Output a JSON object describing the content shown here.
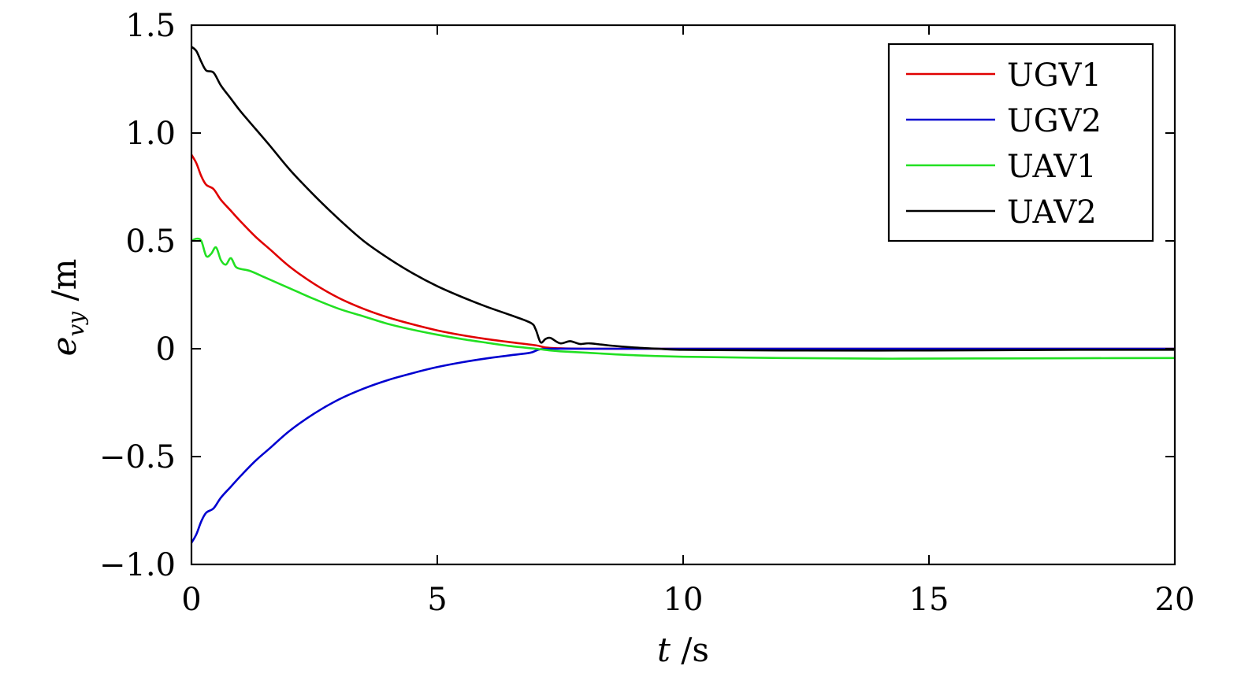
{
  "chart_data": {
    "type": "line",
    "xlabel": {
      "var": "t",
      "unit": " /s"
    },
    "ylabel": {
      "var": "e",
      "sub": "vy",
      "unit": " /m"
    },
    "xlim": [
      0,
      20
    ],
    "ylim": [
      -1.0,
      1.5
    ],
    "x_ticks": [
      0,
      5,
      10,
      15,
      20
    ],
    "x_tick_labels": [
      "0",
      "5",
      "10",
      "15",
      "20"
    ],
    "y_ticks": [
      -1.0,
      -0.5,
      0,
      0.5,
      1.0,
      1.5
    ],
    "y_tick_labels": [
      "−1.0",
      "−0.5",
      "0",
      "0.5",
      "1.0",
      "1.5"
    ],
    "grid": false,
    "legend_position": "top-right",
    "series": [
      {
        "name": "UGV1",
        "color": "#e00000",
        "x": [
          0,
          0.1,
          0.2,
          0.3,
          0.45,
          0.6,
          0.8,
          1.0,
          1.3,
          1.6,
          2.0,
          2.5,
          3.0,
          3.5,
          4.0,
          4.5,
          5.0,
          5.5,
          6.0,
          6.5,
          7.0,
          7.2,
          7.5,
          8.0,
          9.0,
          10.0,
          12.0,
          15.0,
          18.0,
          20.0
        ],
        "y": [
          0.9,
          0.86,
          0.8,
          0.76,
          0.74,
          0.69,
          0.64,
          0.59,
          0.52,
          0.46,
          0.38,
          0.3,
          0.235,
          0.185,
          0.145,
          0.113,
          0.085,
          0.063,
          0.045,
          0.03,
          0.016,
          0.006,
          0.002,
          0.0,
          0.0,
          0.0,
          0.0,
          0.0,
          0.0,
          0.0
        ]
      },
      {
        "name": "UGV2",
        "color": "#0000d0",
        "x": [
          0,
          0.1,
          0.2,
          0.3,
          0.45,
          0.6,
          0.8,
          1.0,
          1.3,
          1.6,
          2.0,
          2.5,
          3.0,
          3.5,
          4.0,
          4.5,
          5.0,
          5.5,
          6.0,
          6.5,
          6.9,
          7.1,
          7.5,
          8.0,
          9.0,
          10.0,
          12.0,
          15.0,
          18.0,
          20.0
        ],
        "y": [
          -0.9,
          -0.86,
          -0.8,
          -0.76,
          -0.74,
          -0.69,
          -0.64,
          -0.59,
          -0.52,
          -0.46,
          -0.38,
          -0.3,
          -0.235,
          -0.185,
          -0.145,
          -0.113,
          -0.085,
          -0.063,
          -0.045,
          -0.03,
          -0.018,
          -0.002,
          0.0,
          0.0,
          0.0,
          0.0,
          0.0,
          0.0,
          0.0,
          0.0
        ]
      },
      {
        "name": "UAV1",
        "color": "#22e022",
        "x": [
          0,
          0.1,
          0.2,
          0.3,
          0.4,
          0.5,
          0.6,
          0.7,
          0.8,
          0.9,
          1.0,
          1.2,
          1.5,
          2.0,
          2.5,
          3.0,
          3.5,
          4.0,
          4.5,
          5.0,
          5.5,
          6.0,
          6.5,
          7.0,
          7.3,
          7.5,
          8.0,
          9.0,
          10.0,
          12.0,
          14.0,
          16.0,
          18.0,
          20.0
        ],
        "y": [
          0.5,
          0.51,
          0.5,
          0.43,
          0.44,
          0.47,
          0.41,
          0.39,
          0.42,
          0.38,
          0.37,
          0.36,
          0.33,
          0.28,
          0.23,
          0.185,
          0.15,
          0.115,
          0.088,
          0.065,
          0.045,
          0.028,
          0.012,
          0.0,
          -0.008,
          -0.012,
          -0.018,
          -0.03,
          -0.037,
          -0.043,
          -0.046,
          -0.045,
          -0.044,
          -0.043
        ]
      },
      {
        "name": "UAV2",
        "color": "#000000",
        "x": [
          0,
          0.1,
          0.2,
          0.3,
          0.45,
          0.6,
          0.8,
          1.0,
          1.3,
          1.6,
          2.0,
          2.5,
          3.0,
          3.5,
          4.0,
          4.5,
          5.0,
          5.5,
          6.0,
          6.5,
          6.9,
          7.0,
          7.1,
          7.2,
          7.3,
          7.5,
          7.7,
          7.9,
          8.1,
          8.5,
          9.0,
          9.5,
          10.0,
          12.0,
          15.0,
          18.0,
          20.0
        ],
        "y": [
          1.4,
          1.38,
          1.33,
          1.29,
          1.28,
          1.22,
          1.16,
          1.1,
          1.02,
          0.94,
          0.83,
          0.71,
          0.6,
          0.5,
          0.42,
          0.35,
          0.29,
          0.24,
          0.195,
          0.155,
          0.12,
          0.09,
          0.03,
          0.045,
          0.05,
          0.025,
          0.035,
          0.022,
          0.025,
          0.015,
          0.006,
          0.0,
          -0.005,
          -0.008,
          -0.008,
          -0.005,
          -0.005
        ]
      }
    ]
  }
}
